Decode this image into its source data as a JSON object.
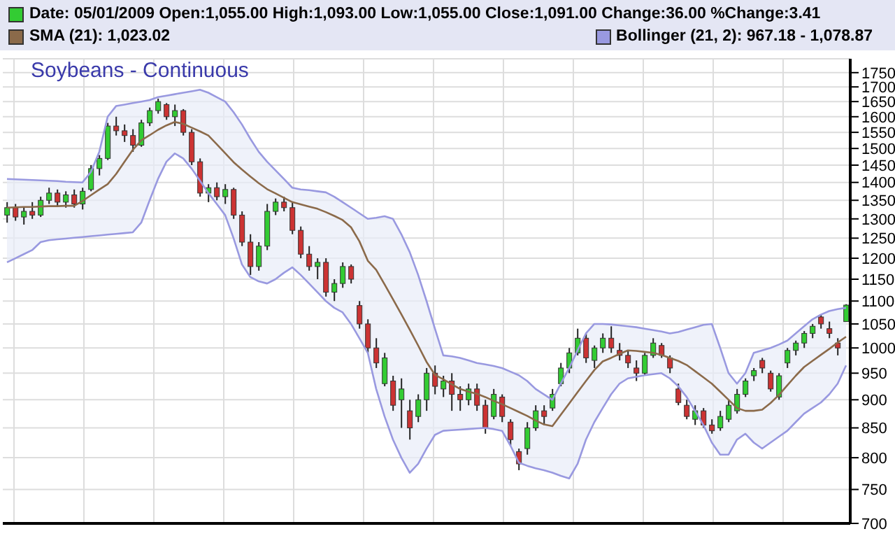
{
  "chart_data": {
    "type": "candlestick",
    "title": "Soybeans - Continuous",
    "legend": "top",
    "grid": true,
    "log": true,
    "tick_labels": "y",
    "categories": [
      null,
      null,
      null,
      null,
      null,
      null,
      null,
      null,
      null,
      null,
      null,
      null,
      null,
      null,
      null,
      null,
      null,
      null,
      null,
      null,
      null,
      null,
      null,
      null,
      null,
      null,
      null,
      null,
      null,
      null,
      null,
      null,
      null,
      null,
      null,
      null,
      null,
      null,
      null,
      null,
      null,
      null,
      null,
      null,
      null,
      null,
      null,
      null,
      null,
      null,
      null,
      null,
      null,
      null,
      null,
      null,
      null,
      null,
      null,
      null,
      null,
      null,
      null,
      null,
      null,
      null,
      null,
      null,
      null,
      null,
      null,
      null,
      null,
      null,
      null,
      null,
      null,
      null,
      null,
      null,
      null,
      null,
      null,
      null,
      null,
      null,
      null,
      null,
      null,
      null,
      null,
      null,
      null,
      null,
      null,
      null,
      null,
      null,
      null,
      null,
      null
    ],
    "ylim": [
      700,
      1800
    ],
    "yticks": [
      700,
      750,
      800,
      850,
      900,
      950,
      1000,
      1050,
      1100,
      1150,
      1200,
      1250,
      1300,
      1350,
      1400,
      1450,
      1500,
      1550,
      1600,
      1650,
      1700,
      1750
    ],
    "series": [
      {
        "name": "Date: 05/01/2009  Open:1,055.00  High:1,093.00  Low:1,055.00  Close:1,091.00  Change:36.00  %Change:3.41",
        "colors": [
          "#33cc33",
          "#cc3333",
          "#33cc33",
          "#cc3333",
          "#33cc33",
          "#33cc33",
          "#cc3333",
          "#33cc33",
          "#cc3333",
          "#33cc33",
          "#33cc33",
          "#33cc33",
          "#33cc33",
          "#cc3333",
          "#cc3333",
          "#cc3333",
          "#33cc33",
          "#33cc33",
          "#33cc33",
          "#cc3333",
          "#33cc33",
          "#cc3333",
          "#cc3333",
          "#cc3333",
          "#33cc33",
          "#cc3333",
          "#33cc33",
          "#cc3333",
          "#cc3333",
          "#cc3333",
          "#33cc33",
          "#33cc33",
          "#33cc33",
          "#cc3333",
          "#cc3333",
          "#cc3333",
          "#cc3333",
          "#33cc33",
          "#cc3333",
          "#33cc33",
          "#33cc33",
          "#cc3333",
          "#cc3333",
          "#cc3333",
          "#cc3333",
          "#33cc33",
          "#cc3333",
          "#33cc33",
          "#cc3333",
          "#33cc33",
          "#33cc33",
          "#cc3333",
          "#33cc33",
          "#cc3333",
          "#cc3333",
          "#33cc33",
          "#cc3333",
          "#cc3333",
          "#33cc33",
          "#cc3333",
          "#cc3333",
          "#cc3333",
          "#33cc33",
          "#33cc33",
          "#cc3333",
          "#33cc33",
          "#33cc33",
          "#33cc33",
          "#33cc33",
          "#cc3333",
          "#33cc33",
          "#33cc33",
          "#cc3333",
          "#cc3333",
          "#cc3333",
          "#cc3333",
          "#33cc33",
          "#33cc33",
          "#cc3333",
          "#cc3333",
          "#cc3333",
          "#cc3333",
          "#33cc33",
          "#cc3333",
          "#cc3333",
          "#33cc33",
          "#33cc33",
          "#33cc33",
          "#33cc33",
          "#33cc33",
          "#cc3333",
          "#cc3333",
          "#33cc33",
          "#33cc33",
          "#33cc33",
          "#33cc33",
          "#33cc33",
          "#cc3333",
          "#cc3333",
          "#cc3333",
          "#33cc33"
        ],
        "ohlc": [
          [
            1310,
            1345,
            1290,
            1330
          ],
          [
            1330,
            1340,
            1295,
            1305
          ],
          [
            1305,
            1330,
            1285,
            1320
          ],
          [
            1320,
            1345,
            1300,
            1310
          ],
          [
            1310,
            1360,
            1305,
            1350
          ],
          [
            1350,
            1385,
            1340,
            1370
          ],
          [
            1370,
            1380,
            1335,
            1345
          ],
          [
            1345,
            1375,
            1330,
            1365
          ],
          [
            1365,
            1380,
            1330,
            1340
          ],
          [
            1340,
            1385,
            1325,
            1375
          ],
          [
            1380,
            1450,
            1375,
            1440
          ],
          [
            1440,
            1480,
            1420,
            1470
          ],
          [
            1470,
            1580,
            1465,
            1570
          ],
          [
            1570,
            1600,
            1540,
            1555
          ],
          [
            1555,
            1575,
            1520,
            1540
          ],
          [
            1540,
            1560,
            1490,
            1510
          ],
          [
            1510,
            1590,
            1505,
            1580
          ],
          [
            1580,
            1630,
            1570,
            1620
          ],
          [
            1620,
            1660,
            1610,
            1650
          ],
          [
            1640,
            1645,
            1590,
            1600
          ],
          [
            1600,
            1640,
            1570,
            1620
          ],
          [
            1620,
            1625,
            1540,
            1550
          ],
          [
            1550,
            1560,
            1450,
            1460
          ],
          [
            1460,
            1470,
            1360,
            1370
          ],
          [
            1370,
            1395,
            1345,
            1385
          ],
          [
            1385,
            1400,
            1350,
            1360
          ],
          [
            1360,
            1395,
            1340,
            1380
          ],
          [
            1380,
            1385,
            1300,
            1310
          ],
          [
            1310,
            1320,
            1230,
            1240
          ],
          [
            1240,
            1260,
            1160,
            1180
          ],
          [
            1180,
            1240,
            1170,
            1230
          ],
          [
            1230,
            1340,
            1220,
            1320
          ],
          [
            1320,
            1355,
            1310,
            1345
          ],
          [
            1345,
            1360,
            1320,
            1330
          ],
          [
            1330,
            1345,
            1260,
            1270
          ],
          [
            1270,
            1280,
            1200,
            1210
          ],
          [
            1210,
            1230,
            1170,
            1180
          ],
          [
            1180,
            1200,
            1150,
            1190
          ],
          [
            1190,
            1200,
            1110,
            1120
          ],
          [
            1120,
            1150,
            1100,
            1140
          ],
          [
            1140,
            1190,
            1130,
            1180
          ],
          [
            1180,
            1185,
            1140,
            1150
          ],
          [
            1090,
            1100,
            1040,
            1050
          ],
          [
            1050,
            1060,
            990,
            1000
          ],
          [
            1000,
            1020,
            960,
            970
          ],
          [
            930,
            990,
            925,
            980
          ],
          [
            935,
            945,
            880,
            890
          ],
          [
            900,
            940,
            850,
            920
          ],
          [
            880,
            900,
            830,
            850
          ],
          [
            870,
            910,
            860,
            900
          ],
          [
            900,
            960,
            880,
            950
          ],
          [
            950,
            965,
            910,
            925
          ],
          [
            920,
            945,
            905,
            935
          ],
          [
            935,
            950,
            880,
            910
          ],
          [
            910,
            925,
            880,
            900
          ],
          [
            900,
            930,
            890,
            920
          ],
          [
            920,
            930,
            880,
            890
          ],
          [
            890,
            900,
            840,
            850
          ],
          [
            870,
            920,
            865,
            910
          ],
          [
            905,
            910,
            860,
            870
          ],
          [
            860,
            865,
            820,
            830
          ],
          [
            810,
            815,
            780,
            790
          ],
          [
            815,
            860,
            805,
            850
          ],
          [
            850,
            890,
            845,
            880
          ],
          [
            880,
            890,
            855,
            870
          ],
          [
            885,
            920,
            880,
            910
          ],
          [
            930,
            970,
            925,
            960
          ],
          [
            960,
            1000,
            950,
            990
          ],
          [
            990,
            1040,
            985,
            1020
          ],
          [
            1020,
            1030,
            970,
            980
          ],
          [
            975,
            1005,
            960,
            1000
          ],
          [
            1000,
            1030,
            990,
            1020
          ],
          [
            1020,
            1045,
            990,
            1000
          ],
          [
            995,
            1010,
            975,
            985
          ],
          [
            985,
            995,
            960,
            970
          ],
          [
            960,
            975,
            935,
            950
          ],
          [
            950,
            990,
            945,
            985
          ],
          [
            985,
            1020,
            980,
            1010
          ],
          [
            1005,
            1010,
            980,
            985
          ],
          [
            980,
            985,
            950,
            960
          ],
          [
            920,
            930,
            890,
            895
          ],
          [
            890,
            900,
            865,
            870
          ],
          [
            865,
            890,
            855,
            880
          ],
          [
            880,
            885,
            850,
            855
          ],
          [
            855,
            865,
            840,
            845
          ],
          [
            850,
            880,
            845,
            870
          ],
          [
            865,
            900,
            860,
            890
          ],
          [
            880,
            920,
            875,
            910
          ],
          [
            910,
            940,
            905,
            935
          ],
          [
            945,
            960,
            935,
            955
          ],
          [
            975,
            980,
            950,
            960
          ],
          [
            950,
            955,
            915,
            920
          ],
          [
            905,
            950,
            900,
            945
          ],
          [
            970,
            1000,
            960,
            995
          ],
          [
            995,
            1015,
            985,
            1010
          ],
          [
            1010,
            1035,
            1000,
            1030
          ],
          [
            1030,
            1050,
            1020,
            1045
          ],
          [
            1065,
            1070,
            1040,
            1050
          ],
          [
            1040,
            1055,
            1020,
            1030
          ],
          [
            1010,
            1020,
            985,
            1000
          ],
          [
            1055,
            1093,
            1055,
            1091
          ]
        ]
      },
      {
        "type": "line",
        "name": "SMA (21): 1,023.02",
        "color": "#8b6a4a",
        "upper": [
          1410,
          1409,
          1408,
          1407,
          1406,
          1405,
          1404,
          1402,
          1401,
          1400,
          1430,
          1490,
          1600,
          1635,
          1640,
          1645,
          1650,
          1655,
          1665,
          1670,
          1675,
          1680,
          1685,
          1690,
          1680,
          1665,
          1650,
          1615,
          1575,
          1530,
          1490,
          1460,
          1435,
          1410,
          1385,
          1380,
          1378,
          1375,
          1372,
          1360,
          1345,
          1330,
          1315,
          1300,
          1303,
          1307,
          1300,
          1260,
          1215,
          1160,
          1100,
          1040,
          985,
          983,
          980,
          975,
          970,
          967,
          964,
          960,
          953,
          946,
          935,
          920,
          910,
          900,
          930,
          960,
          995,
          1030,
          1050,
          1050,
          1049,
          1047,
          1045,
          1043,
          1040,
          1037,
          1034,
          1030,
          1033,
          1038,
          1043,
          1048,
          1050,
          1000,
          950,
          930,
          950,
          990,
          995,
          1000,
          1007,
          1015,
          1030,
          1045,
          1060,
          1070,
          1078,
          1082,
          1085
        ],
        "lower": [
          1190,
          1200,
          1210,
          1220,
          1240,
          1245,
          1247,
          1249,
          1251,
          1253,
          1255,
          1257,
          1259,
          1261,
          1263,
          1265,
          1290,
          1350,
          1410,
          1460,
          1485,
          1470,
          1440,
          1405,
          1370,
          1340,
          1310,
          1250,
          1185,
          1155,
          1145,
          1140,
          1150,
          1165,
          1178,
          1160,
          1140,
          1120,
          1100,
          1085,
          1075,
          1050,
          1020,
          990,
          920,
          870,
          830,
          800,
          776,
          790,
          815,
          838,
          845,
          846,
          847,
          848,
          849,
          850,
          848,
          845,
          820,
          792,
          787,
          783,
          780,
          776,
          771,
          767,
          790,
          830,
          860,
          885,
          910,
          930,
          940,
          943,
          946,
          948,
          950,
          940,
          925,
          905,
          880,
          855,
          825,
          805,
          805,
          830,
          840,
          825,
          815,
          825,
          835,
          845,
          860,
          875,
          885,
          895,
          910,
          930,
          965
        ],
        "values": [
          1330,
          1331,
          1332,
          1332,
          1333,
          1334,
          1334,
          1335,
          1335,
          1348,
          1364,
          1380,
          1395,
          1424,
          1460,
          1496,
          1525,
          1541,
          1558,
          1572,
          1583,
          1577,
          1565,
          1553,
          1540,
          1513,
          1486,
          1459,
          1437,
          1417,
          1398,
          1381,
          1369,
          1357,
          1345,
          1339,
          1333,
          1327,
          1318,
          1308,
          1297,
          1278,
          1242,
          1194,
          1172,
          1138,
          1104,
          1071,
          1038,
          1005,
          972,
          947,
          938,
          929,
          920,
          915,
          911,
          905,
          898,
          892,
          885,
          878,
          871,
          863,
          856,
          853,
          873,
          893,
          914,
          935,
          956,
          973,
          980,
          988,
          995,
          994,
          992,
          990,
          986,
          980,
          974,
          966,
          954,
          942,
          930,
          915,
          900,
          885,
          880,
          880,
          882,
          894,
          909,
          927,
          945,
          962,
          974,
          986,
          998,
          1011,
          1023
        ]
      },
      {
        "type": "line",
        "name": "Bollinger (21, 2): 967.18 - 1,078.87",
        "color": "#9999e0",
        "values": [
          1410,
          1409,
          1408,
          1407,
          1406,
          1405,
          1404,
          1402,
          1401,
          1400,
          1430,
          1490,
          1600,
          1635,
          1640,
          1645,
          1650,
          1655,
          1665,
          1670,
          1675,
          1680,
          1685,
          1690,
          1680,
          1665,
          1650,
          1615,
          1575,
          1530,
          1490,
          1460,
          1435,
          1410,
          1385,
          1380,
          1378,
          1375,
          1372,
          1360,
          1345,
          1330,
          1315,
          1300,
          1303,
          1307,
          1300,
          1260,
          1215,
          1160,
          1100,
          1040,
          985,
          983,
          980,
          975,
          970,
          967,
          964,
          960,
          953,
          946,
          935,
          920,
          910,
          900,
          930,
          960,
          995,
          1030,
          1050,
          1050,
          1049,
          1047,
          1045,
          1043,
          1040,
          1037,
          1034,
          1030,
          1033,
          1038,
          1043,
          1048,
          1050,
          1000,
          950,
          930,
          950,
          990,
          995,
          1000,
          1007,
          1015,
          1030,
          1045,
          1060,
          1070,
          1078,
          1082,
          1085
        ]
      },
      {
        "type": "line",
        "color": "#9999e0",
        "values": [
          1190,
          1200,
          1210,
          1220,
          1240,
          1245,
          1247,
          1249,
          1251,
          1253,
          1255,
          1257,
          1259,
          1261,
          1263,
          1265,
          1290,
          1350,
          1410,
          1460,
          1485,
          1470,
          1440,
          1405,
          1370,
          1340,
          1310,
          1250,
          1185,
          1155,
          1145,
          1140,
          1150,
          1165,
          1178,
          1160,
          1140,
          1120,
          1100,
          1085,
          1075,
          1050,
          1020,
          990,
          920,
          870,
          830,
          800,
          776,
          790,
          815,
          838,
          845,
          846,
          847,
          848,
          849,
          850,
          848,
          845,
          820,
          792,
          787,
          783,
          780,
          776,
          771,
          767,
          790,
          830,
          860,
          885,
          910,
          930,
          940,
          943,
          946,
          948,
          950,
          940,
          925,
          905,
          880,
          855,
          825,
          805,
          805,
          830,
          840,
          825,
          815,
          825,
          835,
          845,
          860,
          875,
          885,
          895,
          910,
          930,
          965
        ]
      }
    ]
  }
}
